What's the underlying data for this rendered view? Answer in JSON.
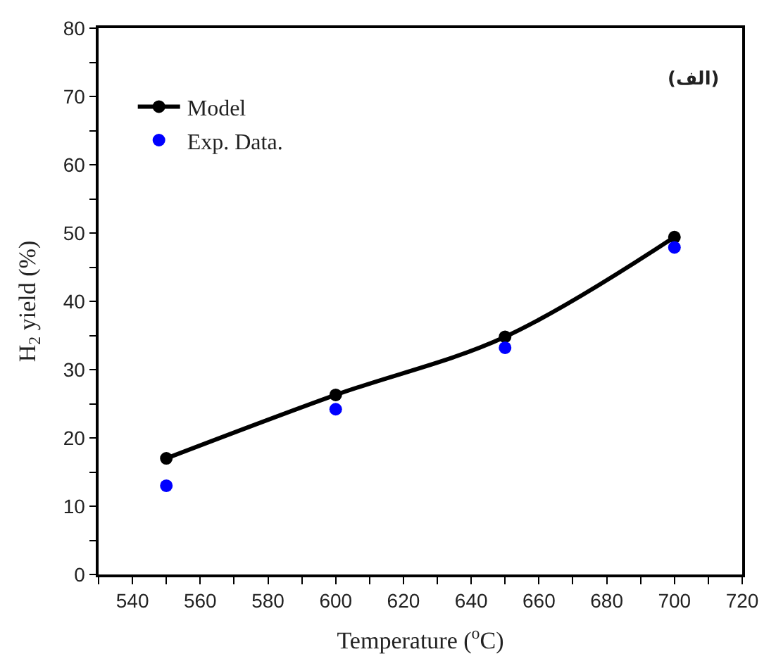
{
  "chart_data": {
    "type": "line",
    "xlabel": "Temperature ($^{o}$C)",
    "ylabel": "H$_{2}$ yield (%)",
    "annotations": [
      "(الف)"
    ],
    "x": [
      550,
      600,
      650,
      700
    ],
    "series": [
      {
        "name": "Model",
        "color": "#000000",
        "marker": "circle",
        "values": [
          17,
          26.3,
          34.8,
          49.4
        ]
      },
      {
        "name": "Exp. Data.",
        "type": "scatter",
        "color": "#0000ff",
        "marker": "circle",
        "values": [
          13,
          24.2,
          33.2,
          47.9
        ]
      }
    ],
    "xlim": [
      530,
      720
    ],
    "xticks": [
      {
        "value": 530,
        "label": null
      },
      540,
      {
        "value": 550,
        "label": null
      },
      560,
      {
        "value": 570,
        "label": null
      },
      580,
      {
        "value": 590,
        "label": null
      },
      600,
      {
        "value": 610,
        "label": null
      },
      620,
      {
        "value": 630,
        "label": null
      },
      640,
      {
        "value": 650,
        "label": null
      },
      660,
      {
        "value": 670,
        "label": null
      },
      680,
      {
        "value": 690,
        "label": null
      },
      700,
      {
        "value": 710,
        "label": null
      },
      720
    ],
    "ylim": [
      0,
      80
    ],
    "yticks": [
      0,
      {
        "value": 5,
        "label": null
      },
      10,
      {
        "value": 15,
        "label": null
      },
      20,
      {
        "value": 25,
        "label": null
      },
      30,
      {
        "value": 35,
        "label": null
      },
      40,
      {
        "value": 45,
        "label": null
      },
      50,
      {
        "value": 55,
        "label": null
      },
      60,
      {
        "value": 65,
        "label": null
      },
      70,
      {
        "value": 75,
        "label": null
      },
      80
    ],
    "legend": "top left"
  }
}
